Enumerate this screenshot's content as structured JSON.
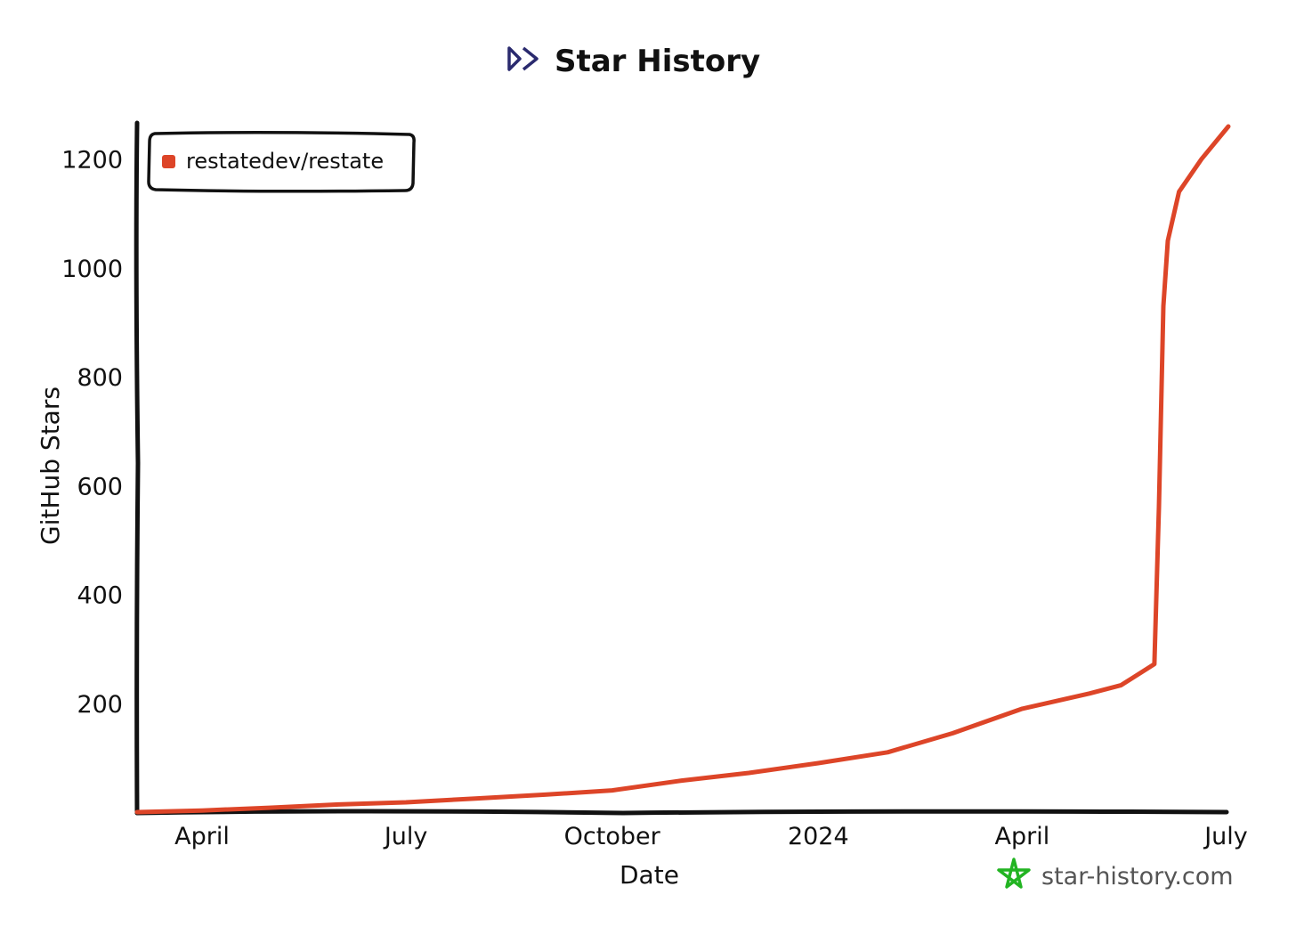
{
  "header": {
    "title": "Star History",
    "title_icon": "double-chevron-right-icon"
  },
  "brand": {
    "text": "star-history.com",
    "icon": "star-outline-icon"
  },
  "colors": {
    "series": "#dd4528",
    "axis": "#111111",
    "title_icon": "#2a2a6e",
    "brand_icon": "#22b422",
    "brand_text": "#555555"
  },
  "chart_data": {
    "type": "line",
    "title": "Star History",
    "xlabel": "Date",
    "ylabel": "GitHub Stars",
    "x_tick_labels": [
      "April",
      "July",
      "October",
      "2024",
      "April",
      "July"
    ],
    "y_ticks": [
      200,
      400,
      600,
      800,
      1000,
      1200
    ],
    "xlim": [
      "2023-03-03",
      "2024-07-02"
    ],
    "ylim": [
      0,
      1260
    ],
    "grid": false,
    "legend_position": "top-left",
    "series": [
      {
        "name": "restatedev/restate",
        "x": [
          "2023-03-03",
          "2023-04-01",
          "2023-05-01",
          "2023-06-01",
          "2023-07-01",
          "2023-08-01",
          "2023-09-01",
          "2023-10-01",
          "2023-11-01",
          "2023-12-01",
          "2024-01-01",
          "2024-02-01",
          "2024-03-01",
          "2024-04-01",
          "2024-05-01",
          "2024-05-15",
          "2024-05-30",
          "2024-06-01",
          "2024-06-03",
          "2024-06-05",
          "2024-06-10",
          "2024-06-20",
          "2024-07-02"
        ],
        "y": [
          0,
          3,
          8,
          14,
          18,
          25,
          32,
          40,
          58,
          72,
          90,
          110,
          145,
          190,
          218,
          233,
          272,
          560,
          930,
          1050,
          1140,
          1200,
          1260
        ]
      }
    ]
  }
}
